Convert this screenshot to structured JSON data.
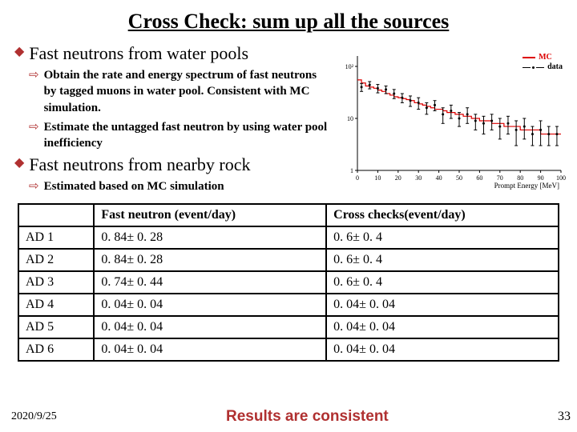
{
  "title": "Cross Check: sum up all the sources",
  "headings": {
    "h1": "Fast neutrons from water pools",
    "h2": "Fast neutrons from nearby rock"
  },
  "subs": {
    "s1": "Obtain the rate and energy spectrum of fast neutrons by tagged muons in water pool. Consistent with MC simulation.",
    "s2": "Estimate the untagged fast neutron by using water pool inefficiency",
    "s3": "Estimated based on MC simulation"
  },
  "table": {
    "headers": [
      "",
      "Fast neutron (event/day)",
      "Cross checks(event/day)"
    ],
    "rows": [
      [
        "AD 1",
        "0. 84± 0. 28",
        "0. 6± 0. 4"
      ],
      [
        "AD 2",
        "0. 84± 0. 28",
        "0. 6± 0. 4"
      ],
      [
        "AD 3",
        "0. 74± 0. 44",
        "0. 6± 0. 4"
      ],
      [
        "AD 4",
        "0. 04± 0. 04",
        "0. 04± 0. 04"
      ],
      [
        "AD 5",
        "0. 04± 0. 04",
        "0. 04± 0. 04"
      ],
      [
        "AD 6",
        "0. 04± 0. 04",
        "0. 04± 0. 04"
      ]
    ]
  },
  "footer": {
    "date": "2020/9/25",
    "result": "Results are consistent",
    "page": "33"
  },
  "chart": {
    "type": "scatter-with-histogram",
    "x_label": "Prompt Energy [MeV]",
    "x_ticks": [
      0,
      10,
      20,
      30,
      40,
      50,
      60,
      70,
      80,
      90,
      100
    ],
    "y_scale": "log",
    "y_ticks": [
      1,
      10,
      100
    ],
    "background": "#ffffff",
    "axis_color": "#000000",
    "grid": false,
    "legend": [
      {
        "label": "MC",
        "color": "#dd0000",
        "style": "line"
      },
      {
        "label": "data",
        "color": "#000000",
        "style": "points-errorbars"
      }
    ],
    "mc_color": "#dd0000",
    "data_color": "#000000",
    "mc_values": [
      55,
      48,
      42,
      40,
      38,
      35,
      33,
      30,
      28,
      26,
      25,
      24,
      23,
      22,
      20,
      19,
      18,
      17,
      16,
      15,
      15,
      14,
      13,
      13,
      12,
      12,
      11,
      11,
      10,
      10,
      9,
      9,
      9,
      8,
      8,
      8,
      7,
      7,
      7,
      7,
      6,
      6,
      6,
      6,
      6,
      5,
      5,
      5,
      5,
      5
    ],
    "data_points": [
      {
        "x": 2,
        "y": 40,
        "err": 7
      },
      {
        "x": 6,
        "y": 44,
        "err": 7
      },
      {
        "x": 10,
        "y": 38,
        "err": 7
      },
      {
        "x": 14,
        "y": 36,
        "err": 6
      },
      {
        "x": 18,
        "y": 30,
        "err": 6
      },
      {
        "x": 22,
        "y": 25,
        "err": 5
      },
      {
        "x": 26,
        "y": 22,
        "err": 5
      },
      {
        "x": 30,
        "y": 20,
        "err": 5
      },
      {
        "x": 34,
        "y": 16,
        "err": 4
      },
      {
        "x": 38,
        "y": 18,
        "err": 4
      },
      {
        "x": 42,
        "y": 12,
        "err": 4
      },
      {
        "x": 46,
        "y": 14,
        "err": 4
      },
      {
        "x": 50,
        "y": 10,
        "err": 3
      },
      {
        "x": 54,
        "y": 12,
        "err": 4
      },
      {
        "x": 58,
        "y": 9,
        "err": 3
      },
      {
        "x": 62,
        "y": 8,
        "err": 3
      },
      {
        "x": 66,
        "y": 9,
        "err": 3
      },
      {
        "x": 70,
        "y": 7,
        "err": 3
      },
      {
        "x": 74,
        "y": 8,
        "err": 3
      },
      {
        "x": 78,
        "y": 6,
        "err": 3
      },
      {
        "x": 82,
        "y": 7,
        "err": 3
      },
      {
        "x": 86,
        "y": 5,
        "err": 2
      },
      {
        "x": 90,
        "y": 6,
        "err": 3
      },
      {
        "x": 94,
        "y": 5,
        "err": 2
      },
      {
        "x": 98,
        "y": 5,
        "err": 2
      }
    ]
  },
  "colors": {
    "accent": "#b03030"
  }
}
